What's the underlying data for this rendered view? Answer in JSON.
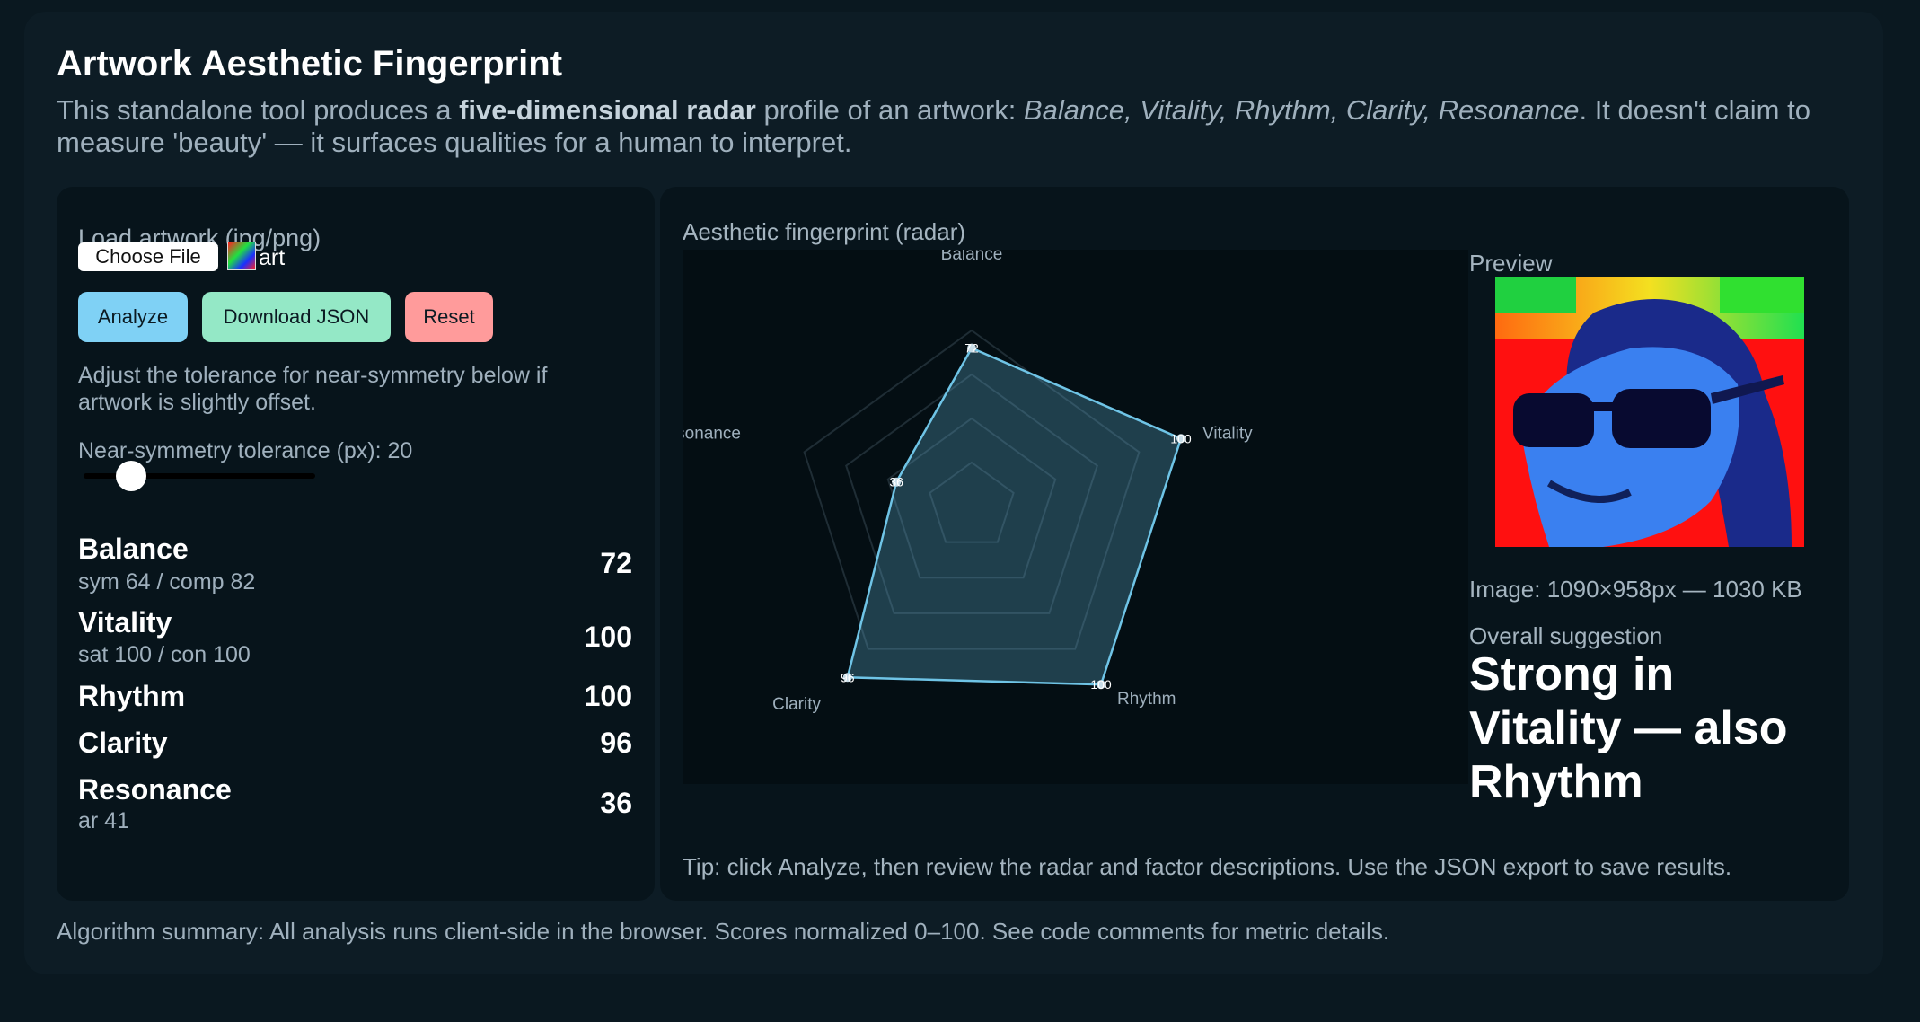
{
  "header": {
    "title": "Artwork Aesthetic Fingerprint",
    "intro_prefix": "This standalone tool produces a ",
    "intro_bold": "five-dimensional radar",
    "intro_mid": " profile of an artwork: ",
    "intro_italic": "Balance, Vitality, Rhythm, Clarity, Resonance",
    "intro_suffix": ". It doesn't claim to measure 'beauty' — it surfaces qualities for a human to interpret."
  },
  "controls": {
    "load_label": "Load artwork (jpg/png)",
    "choose_file": "Choose File",
    "file_name": "art",
    "analyze": "Analyze",
    "download_json": "Download JSON",
    "reset": "Reset",
    "hint": "Adjust the tolerance for near-symmetry below if artwork is slightly offset.",
    "tolerance_label": "Near-symmetry tolerance (px): 20",
    "tolerance_value": 20
  },
  "metrics": [
    {
      "name": "Balance",
      "sub": "sym 64 / comp 82",
      "score": "72"
    },
    {
      "name": "Vitality",
      "sub": "sat 100 / con 100",
      "score": "100"
    },
    {
      "name": "Rhythm",
      "sub": "",
      "score": "100"
    },
    {
      "name": "Clarity",
      "sub": "",
      "score": "96"
    },
    {
      "name": "Resonance",
      "sub": "ar 41",
      "score": "36"
    }
  ],
  "radar": {
    "title": "Aesthetic fingerprint (radar)",
    "axes": [
      "Balance",
      "Vitality",
      "Rhythm",
      "Clarity",
      "Resonance"
    ],
    "values": [
      72,
      100,
      100,
      96,
      36
    ],
    "max": 100,
    "fill_color": "#5aa8c8",
    "stroke_color": "#6fc4e6"
  },
  "preview": {
    "label": "Preview",
    "image_info": "Image: 1090×958px — 1030 KB",
    "overall_label": "Overall suggestion",
    "overall_text": "Strong in Vitality — also Rhythm"
  },
  "tip": "Tip: click Analyze, then review the radar and factor descriptions. Use the JSON export to save results.",
  "footer": "Algorithm summary: All analysis runs client-side in the browser. Scores normalized 0–100. See code comments for metric details."
}
